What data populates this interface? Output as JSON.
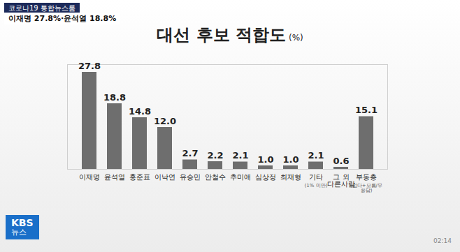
{
  "chart_data": {
    "type": "bar",
    "title": "대선 후보 적합도",
    "unit": "(%)",
    "categories": [
      "이재명",
      "윤석열",
      "홍준표",
      "이낙연",
      "유승민",
      "안철수",
      "추미애",
      "심상정",
      "최재형",
      "기타",
      "그 외 다른사람",
      "부동층"
    ],
    "category_notes": [
      null,
      null,
      null,
      null,
      null,
      null,
      null,
      null,
      null,
      "(1% 미만)",
      null,
      "(없다+모름/무응답)"
    ],
    "values": [
      27.8,
      18.8,
      14.8,
      12.0,
      2.7,
      2.2,
      2.1,
      1.0,
      1.0,
      2.1,
      0.6,
      15.1
    ],
    "value_labels": [
      "27.8",
      "18.8",
      "14.8",
      "12.0",
      "2.7",
      "2.2",
      "2.1",
      "1.0",
      "1.0",
      "2.1",
      "0.6",
      "15.1"
    ],
    "color": "#6e6e6e",
    "ylim": [
      0,
      30
    ],
    "yticks": [],
    "tick_labels": "x",
    "data_labels": true,
    "grid": false
  },
  "overlay": {
    "program": "코로나19 통합뉴스룸",
    "headline": "이재명 27.8%·윤석열 18.8%",
    "logo": [
      "KBS",
      "뉴스"
    ],
    "timestamp": "02:14"
  }
}
